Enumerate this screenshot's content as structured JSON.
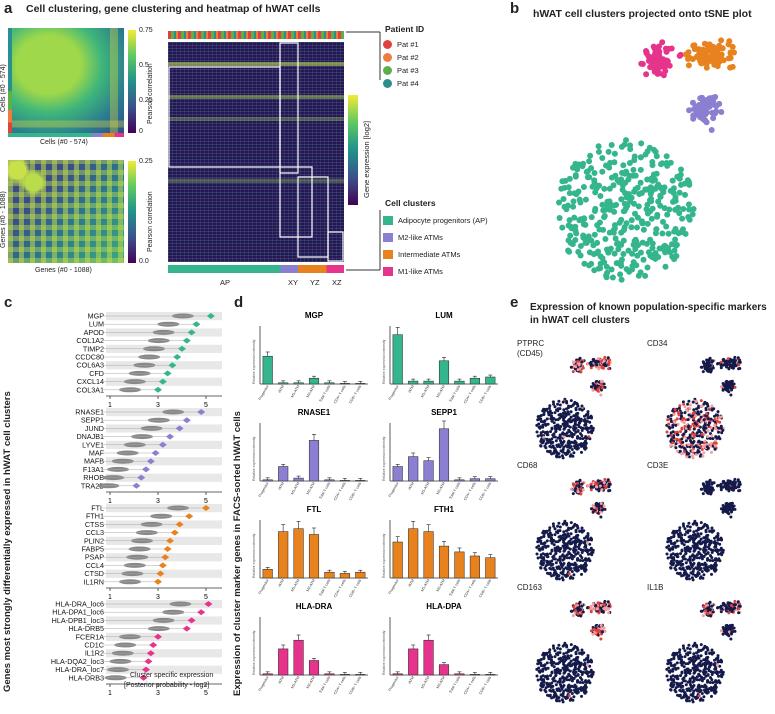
{
  "colors": {
    "pat1": "#e0413a",
    "pat2": "#f07b3f",
    "pat3": "#5bb04a",
    "pat4": "#2c8f8f",
    "ap": "#35b58e",
    "m2": "#8a7fd0",
    "inter": "#e8821e",
    "m1": "#e6348d",
    "dark": "#141a4a"
  },
  "panel_a": {
    "letter": "a",
    "title": "Cell clustering, gene clustering and heatmap of hWAT cells",
    "cell_matrix": {
      "xlabel": "Cells (#0 - 574)",
      "ylabel": "Cells (#0 - 574)",
      "colorbar_ticks": [
        "0.75",
        "0.5",
        "0.25",
        "0"
      ],
      "colorbar_label": "Pearson correlation"
    },
    "gene_matrix": {
      "xlabel": "Genes (#0 - 1088)",
      "ylabel": "Genes (#0 - 1088)",
      "colorbar_ticks": [
        "0.25",
        "0.0"
      ],
      "colorbar_label": "Pearson correlation"
    },
    "heatmap": {
      "colorbar_label": "Gene expression [log2]",
      "cluster_labels": [
        "AP",
        "XY",
        "YZ",
        "XZ"
      ]
    },
    "legend_patient": {
      "title": "Patient ID",
      "items": [
        "Pat #1",
        "Pat #2",
        "Pat #3",
        "Pat #4"
      ]
    },
    "legend_clusters": {
      "title": "Cell clusters",
      "items": [
        "Adipocyte progenitors (AP)",
        "M2-like ATMs",
        "Intermediate ATMs",
        "M1-like ATMs"
      ]
    }
  },
  "panel_b": {
    "letter": "b",
    "title": "hWAT cell clusters projected onto tSNE plot"
  },
  "panel_c": {
    "letter": "c",
    "ylabel": "Genes most strongly differentially expressed in hWAT cell clusters",
    "xlabel_line1": "Cluster specific expression",
    "xlabel_line2": "[Posterior probability - log2]",
    "ticks": [
      "1",
      "3",
      "5"
    ],
    "groups": [
      {
        "genes": [
          "MGP",
          "LUM",
          "APOD",
          "COL1A2",
          "TIMP2",
          "CCDC80",
          "COL6A3",
          "CFD",
          "CXCL14",
          "COL3A1"
        ],
        "values": [
          5.2,
          4.6,
          4.4,
          4.2,
          4.0,
          3.8,
          3.6,
          3.4,
          3.2,
          3.0
        ]
      },
      {
        "genes": [
          "RNASE1",
          "SEPP1",
          "JUND",
          "DNAJB1",
          "LYVE1",
          "MAF",
          "MAFB",
          "F13A1",
          "RHOB",
          "TRA2B"
        ],
        "values": [
          4.8,
          4.2,
          3.9,
          3.5,
          3.2,
          2.9,
          2.7,
          2.5,
          2.3,
          2.1
        ]
      },
      {
        "genes": [
          "FTL",
          "FTH1",
          "CTSS",
          "CCL3",
          "PLIN2",
          "FABP5",
          "PSAP",
          "CCL4",
          "CTSD",
          "IL1RN"
        ],
        "values": [
          5.0,
          4.3,
          3.9,
          3.7,
          3.5,
          3.4,
          3.3,
          3.2,
          3.1,
          3.0
        ]
      },
      {
        "genes": [
          "HLA-DRA_loc6",
          "HLA-DPA1_loc6",
          "HLA-DPB1_loc3",
          "HLA-DRB5",
          "FCER1A",
          "CD1C",
          "IL1R2",
          "HLA-DQA2_loc3",
          "HLA-DRA_loc7",
          "HLA-DRB3"
        ],
        "values": [
          5.1,
          4.8,
          4.4,
          4.2,
          3.0,
          2.8,
          2.7,
          2.6,
          2.5,
          2.4
        ]
      }
    ]
  },
  "panel_d": {
    "letter": "d",
    "ylabel": "Expression of cluster marker genes in FACS-sorted hWAT cells",
    "axis_label": "Relative expression intensity",
    "categories": [
      "Progenitor",
      "iATM",
      "M1-ATM",
      "M2-ATM",
      "Total T cells",
      "CD4+ T cells",
      "CD8+ T cells"
    ],
    "charts": [
      {
        "gene": "MGP",
        "color": "m2x",
        "values": [
          0.48,
          0.02,
          0.02,
          0.1,
          0.02,
          0.01,
          0.01
        ]
      },
      {
        "gene": "LUM",
        "color": "ap",
        "values": [
          0.85,
          0.05,
          0.05,
          0.4,
          0.05,
          0.1,
          0.12
        ]
      },
      {
        "gene": "RNASE1",
        "color": "m2",
        "values": [
          0.02,
          0.25,
          0.05,
          0.7,
          0.02,
          0.01,
          0.01
        ]
      },
      {
        "gene": "SEPP1",
        "color": "m2",
        "values": [
          0.25,
          0.42,
          0.35,
          0.9,
          0.02,
          0.04,
          0.04
        ]
      },
      {
        "gene": "FTL",
        "color": "inter",
        "values": [
          0.15,
          0.8,
          0.85,
          0.75,
          0.1,
          0.08,
          0.1
        ]
      },
      {
        "gene": "FTH1",
        "color": "inter",
        "values": [
          0.62,
          0.85,
          0.8,
          0.55,
          0.45,
          0.38,
          0.35
        ]
      },
      {
        "gene": "HLA-DRA",
        "color": "m1",
        "values": [
          0.02,
          0.45,
          0.6,
          0.25,
          0.02,
          0.01,
          0.01
        ]
      },
      {
        "gene": "HLA-DPA",
        "color": "m1",
        "values": [
          0.02,
          0.45,
          0.6,
          0.18,
          0.02,
          0.01,
          0.01
        ]
      }
    ]
  },
  "panel_e": {
    "letter": "e",
    "title_line1": "Expression of known population-specific markers",
    "title_line2": "in hWAT cell clusters",
    "markers": [
      "PTPRC",
      "CD34",
      "CD68",
      "CD3E",
      "CD163",
      "IL1B"
    ],
    "ptprc_sub": "(CD45)"
  }
}
